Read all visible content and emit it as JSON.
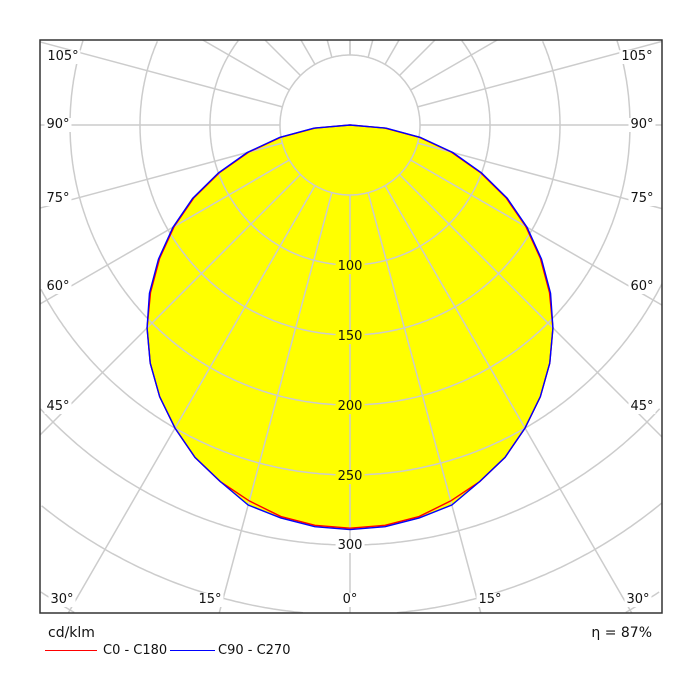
{
  "chart_data": {
    "type": "polar",
    "unit_label": "cd/klm",
    "efficiency_label": "η = 87%",
    "radial_ticks": [
      50,
      100,
      150,
      200,
      250,
      300,
      350,
      400,
      450
    ],
    "radial_tick_labels": [
      "100",
      "150",
      "200",
      "250",
      "300"
    ],
    "angle_labels": {
      "left": [
        "105°",
        "90°",
        "75°",
        "60°",
        "45°",
        "30°",
        "15°"
      ],
      "bottom": "0°",
      "right": [
        "15°",
        "30°",
        "45°",
        "60°",
        "75°",
        "90°",
        "105°"
      ]
    },
    "fill_color": "#ffff00",
    "grid_color": "#cccccc",
    "angles_deg": [
      0,
      5,
      10,
      15,
      20,
      25,
      30,
      35,
      40,
      45,
      50,
      55,
      60,
      65,
      70,
      75,
      80,
      85,
      90
    ],
    "series": [
      {
        "name": "C0 - C180",
        "color": "#ff0000",
        "values": [
          288,
          287,
          284,
          278,
          271,
          262,
          250,
          237,
          222,
          205,
          186,
          166,
          145,
          123,
          99,
          75,
          50,
          25,
          0
        ]
      },
      {
        "name": "C90 - C270",
        "color": "#0000ff",
        "values": [
          289,
          288,
          285,
          281,
          271,
          262,
          250,
          237,
          222,
          205,
          187,
          167,
          146,
          124,
          100,
          76,
          51,
          26,
          0
        ]
      }
    ]
  }
}
